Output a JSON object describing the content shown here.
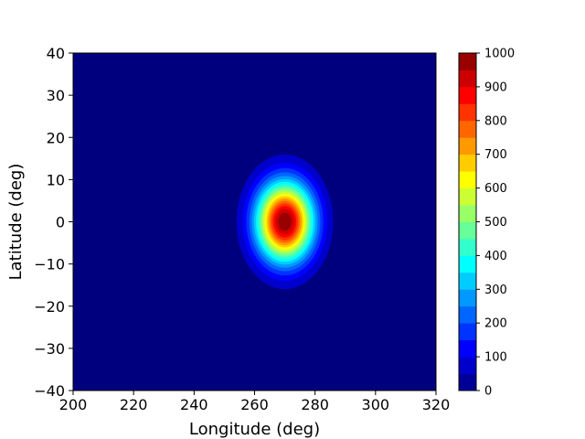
{
  "chart_data": {
    "type": "heatmap",
    "subtype": "filled-contour",
    "title": "",
    "xlabel": "Longitude (deg)",
    "ylabel": "Latitude (deg)",
    "xlim": [
      200,
      320
    ],
    "ylim": [
      -40,
      40
    ],
    "x_ticks": [
      200,
      220,
      240,
      260,
      280,
      300,
      320
    ],
    "y_ticks": [
      -40,
      -30,
      -20,
      -10,
      0,
      10,
      20,
      30,
      40
    ],
    "field": {
      "shape": "gaussian",
      "center_lon": 270,
      "center_lat": 0,
      "peak_value": 1000,
      "background_value": 0,
      "sigma_lon_deg": 6.5,
      "sigma_lat_deg": 6.5
    },
    "colormap": "jet",
    "colorbar": {
      "min": 0,
      "max": 1000,
      "levels": 20,
      "ticks": [
        0,
        100,
        200,
        300,
        400,
        500,
        600,
        700,
        800,
        900,
        1000
      ]
    },
    "grid": false
  }
}
